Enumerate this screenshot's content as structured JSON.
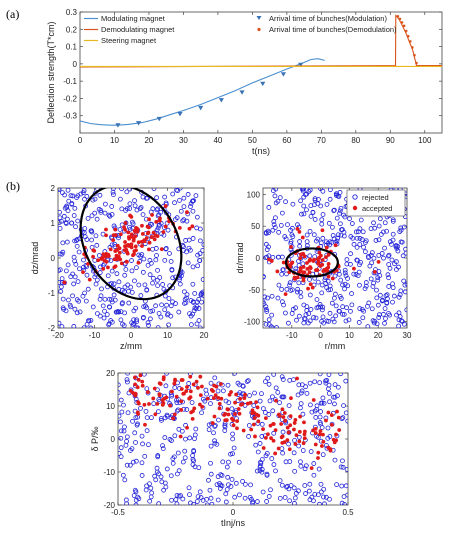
{
  "panel_labels": {
    "a": "(a)",
    "b": "(b)"
  },
  "chart_data": [
    {
      "id": "deflection",
      "type": "line",
      "xlabel": "t(ns)",
      "ylabel": "Deflection strength(T*cm)",
      "xlim": [
        0,
        105
      ],
      "ylim": [
        -0.4,
        0.3
      ],
      "xticks": [
        0,
        10,
        20,
        30,
        40,
        50,
        60,
        70,
        80,
        90,
        100
      ],
      "yticks": [
        -0.3,
        -0.2,
        -0.1,
        0,
        0.1,
        0.2,
        0.3
      ],
      "legend": {
        "placement": "top",
        "entries": [
          {
            "label": "Modulating magnet",
            "color": "#4a8fd0",
            "marker": "line"
          },
          {
            "label": "Arrival time of bunches(Modulation)",
            "color": "#3a73b8",
            "marker": "triangle-down"
          },
          {
            "label": "Demodulating magnet",
            "color": "#d9541a",
            "marker": "line"
          },
          {
            "label": "Arrival time of bunches(Demodulation)",
            "color": "#d9541a",
            "marker": "dot"
          },
          {
            "label": "Steering magnet",
            "color": "#e8b820",
            "marker": "line"
          }
        ]
      },
      "series": [
        {
          "key": "modulating",
          "color": "#4a8fd0",
          "x": [
            0,
            3,
            6,
            9,
            11,
            14,
            18,
            22,
            26,
            30,
            35,
            40,
            45,
            50,
            55,
            60,
            64,
            67,
            69,
            71
          ],
          "y": [
            -0.33,
            -0.345,
            -0.352,
            -0.355,
            -0.355,
            -0.35,
            -0.34,
            -0.32,
            -0.295,
            -0.27,
            -0.235,
            -0.195,
            -0.155,
            -0.11,
            -0.07,
            -0.03,
            0.0,
            0.025,
            0.03,
            0.02
          ]
        },
        {
          "key": "modulation_arrivals",
          "color": "#3a73b8",
          "x": [
            11,
            17,
            23,
            29,
            35,
            41,
            47,
            53,
            59,
            64
          ],
          "y": [
            -0.355,
            -0.343,
            -0.318,
            -0.29,
            -0.255,
            -0.21,
            -0.165,
            -0.115,
            -0.06,
            -0.005
          ]
        },
        {
          "key": "demodulating",
          "color": "#d9541a",
          "x": [
            0,
            91.5,
            91.6,
            92.5,
            93.5,
            94.5,
            95.5,
            96.5,
            97.5,
            97.6,
            105
          ],
          "y": [
            -0.018,
            -0.01,
            0.28,
            0.26,
            0.22,
            0.18,
            0.13,
            0.08,
            0.0,
            -0.01,
            -0.01
          ]
        },
        {
          "key": "demodulation_arrivals",
          "color": "#d9541a",
          "x": [
            92.2,
            92.8,
            93.4,
            94.0,
            94.6,
            95.2,
            95.8,
            96.4,
            97.0,
            97.6
          ],
          "y": [
            0.275,
            0.26,
            0.24,
            0.22,
            0.19,
            0.16,
            0.13,
            0.095,
            0.05,
            0.005
          ]
        },
        {
          "key": "steering",
          "color": "#e8b820",
          "x": [
            0,
            105
          ],
          "y": [
            -0.015,
            -0.015
          ]
        }
      ]
    },
    {
      "id": "phase-z",
      "type": "scatter",
      "xlabel": "z/mm",
      "ylabel": "dz/mrad",
      "xlim": [
        -20,
        20
      ],
      "ylim": [
        -2,
        2
      ],
      "xticks": [
        -20,
        -10,
        0,
        10,
        20
      ],
      "yticks": [
        -2,
        -1,
        0,
        1,
        2
      ],
      "ellipse": {
        "cx": 0,
        "cy": 0.45,
        "rx": 12.5,
        "ry": 0.28,
        "angle_deg": 32,
        "color": "#000000"
      },
      "rejected_count": 460,
      "accepted_count": 120
    },
    {
      "id": "phase-r",
      "type": "scatter",
      "xlabel": "r/mm",
      "ylabel": "dr/mrad",
      "xlim": [
        -20,
        30
      ],
      "ylim": [
        -110,
        110
      ],
      "xticks": [
        -10,
        0,
        10,
        20,
        30
      ],
      "yticks": [
        -100,
        -50,
        0,
        50,
        100
      ],
      "legend": {
        "placement": "top-right",
        "entries": [
          {
            "label": "rejected",
            "color": "#2323d8",
            "marker": "circle-open"
          },
          {
            "label": "accepted",
            "color": "#e01a1a",
            "marker": "dot"
          }
        ]
      },
      "ellipse": {
        "cx": -3,
        "cy": -7,
        "rx": 9,
        "ry": 22,
        "angle_deg": 0,
        "color": "#000000"
      },
      "rejected_count": 480,
      "accepted_count": 90
    },
    {
      "id": "phase-t",
      "type": "scatter",
      "xlabel": "tInj/ns",
      "ylabel": "δ P/‰",
      "xlim": [
        -0.5,
        0.5
      ],
      "ylim": [
        -20,
        20
      ],
      "xticks": [
        -0.5,
        0,
        0.5
      ],
      "yticks": [
        -20,
        -10,
        0,
        10,
        20
      ],
      "rejected_count": 480,
      "accepted_count": 200
    }
  ]
}
